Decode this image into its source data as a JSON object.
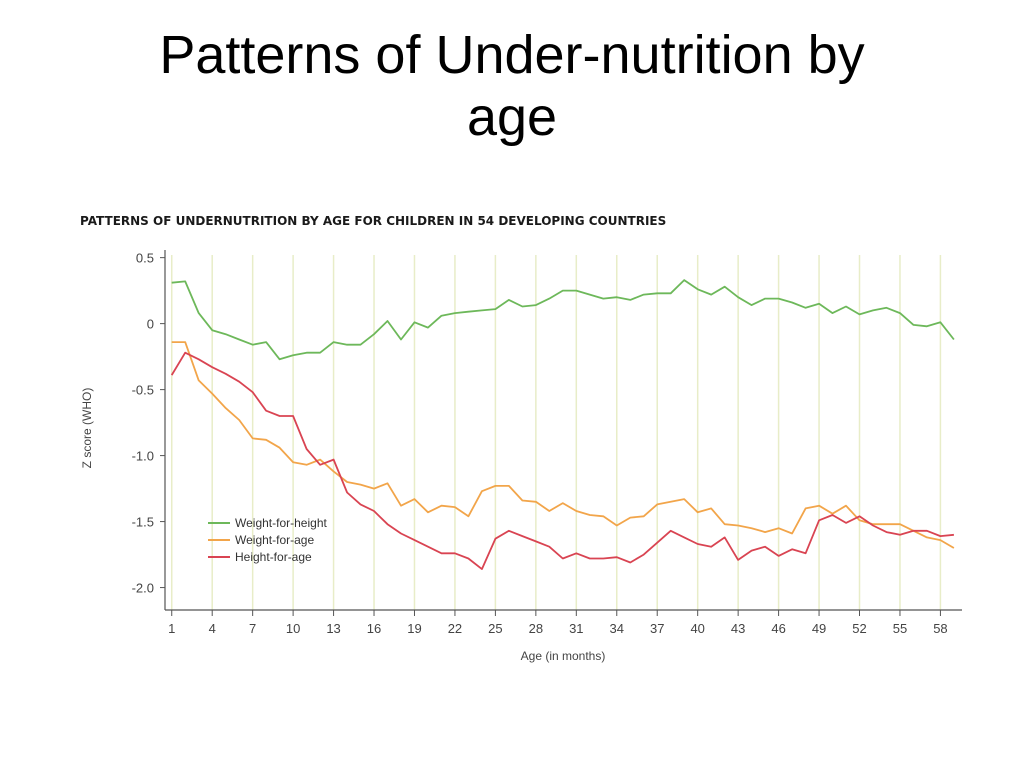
{
  "slide": {
    "title_line1": "Patterns of Under-nutrition by",
    "title_line2": "age"
  },
  "chart_data": {
    "type": "line",
    "title": "PATTERNS OF UNDERNUTRITION BY AGE FOR CHILDREN IN 54 DEVELOPING COUNTRIES",
    "xlabel": "Age (in months)",
    "ylabel": "Z score (WHO)",
    "x_ticks": [
      1,
      4,
      7,
      10,
      13,
      16,
      19,
      22,
      25,
      28,
      31,
      34,
      37,
      40,
      43,
      46,
      49,
      52,
      55,
      58
    ],
    "x_tick_labels": [
      "1",
      "4",
      "7",
      "10",
      "13",
      "16",
      "19",
      "22",
      "25",
      "28",
      "31",
      "34",
      "37",
      "40",
      "43",
      "46",
      "49",
      "52",
      "55",
      "58"
    ],
    "y_ticks": [
      0.5,
      0,
      -0.5,
      -1.0,
      -1.5,
      -2.0
    ],
    "y_tick_labels": [
      "0.5",
      "0",
      "-0.5",
      "-1.0",
      "-1.5",
      "-2.0"
    ],
    "xlim": [
      0.5,
      59.6
    ],
    "ylim": [
      -2.17,
      0.52
    ],
    "grid": "vertical",
    "grid_color": "#e8edc8",
    "legend_position": "lower-left",
    "x": [
      1,
      2,
      3,
      4,
      5,
      6,
      7,
      8,
      9,
      10,
      11,
      12,
      13,
      14,
      15,
      16,
      17,
      18,
      19,
      20,
      21,
      22,
      23,
      24,
      25,
      26,
      27,
      28,
      29,
      30,
      31,
      32,
      33,
      34,
      35,
      36,
      37,
      38,
      39,
      40,
      41,
      42,
      43,
      44,
      45,
      46,
      47,
      48,
      49,
      50,
      51,
      52,
      53,
      54,
      55,
      56,
      57,
      58,
      59
    ],
    "series": [
      {
        "name": "Weight-for-height",
        "color": "#6db85a",
        "values": [
          0.31,
          0.32,
          0.08,
          -0.05,
          -0.08,
          -0.12,
          -0.16,
          -0.14,
          -0.27,
          -0.24,
          -0.22,
          -0.22,
          -0.14,
          -0.16,
          -0.16,
          -0.08,
          0.02,
          -0.12,
          0.01,
          -0.03,
          0.06,
          0.08,
          0.09,
          0.1,
          0.11,
          0.18,
          0.13,
          0.14,
          0.19,
          0.25,
          0.25,
          0.22,
          0.19,
          0.2,
          0.18,
          0.22,
          0.23,
          0.23,
          0.33,
          0.26,
          0.22,
          0.28,
          0.2,
          0.14,
          0.19,
          0.19,
          0.16,
          0.12,
          0.15,
          0.08,
          0.13,
          0.07,
          0.1,
          0.12,
          0.08,
          -0.01,
          -0.02,
          0.01,
          -0.12
        ]
      },
      {
        "name": "Weight-for-age",
        "color": "#f2a54a",
        "values": [
          -0.14,
          -0.14,
          -0.43,
          -0.53,
          -0.64,
          -0.73,
          -0.87,
          -0.88,
          -0.94,
          -1.05,
          -1.07,
          -1.03,
          -1.12,
          -1.2,
          -1.22,
          -1.25,
          -1.21,
          -1.38,
          -1.33,
          -1.43,
          -1.38,
          -1.39,
          -1.46,
          -1.27,
          -1.23,
          -1.23,
          -1.34,
          -1.35,
          -1.42,
          -1.36,
          -1.42,
          -1.45,
          -1.46,
          -1.53,
          -1.47,
          -1.46,
          -1.37,
          -1.35,
          -1.33,
          -1.43,
          -1.4,
          -1.52,
          -1.53,
          -1.55,
          -1.58,
          -1.55,
          -1.59,
          -1.4,
          -1.38,
          -1.44,
          -1.38,
          -1.49,
          -1.52,
          -1.52,
          -1.52,
          -1.57,
          -1.62,
          -1.64,
          -1.7
        ]
      },
      {
        "name": "Height-for-age",
        "color": "#d94452",
        "values": [
          -0.39,
          -0.22,
          -0.27,
          -0.33,
          -0.38,
          -0.44,
          -0.52,
          -0.66,
          -0.7,
          -0.7,
          -0.95,
          -1.07,
          -1.03,
          -1.28,
          -1.37,
          -1.42,
          -1.52,
          -1.59,
          -1.64,
          -1.69,
          -1.74,
          -1.74,
          -1.78,
          -1.86,
          -1.63,
          -1.57,
          -1.61,
          -1.65,
          -1.69,
          -1.78,
          -1.74,
          -1.78,
          -1.78,
          -1.77,
          -1.81,
          -1.75,
          -1.66,
          -1.57,
          -1.62,
          -1.67,
          -1.69,
          -1.62,
          -1.79,
          -1.72,
          -1.69,
          -1.76,
          -1.71,
          -1.74,
          -1.49,
          -1.45,
          -1.51,
          -1.46,
          -1.53,
          -1.58,
          -1.6,
          -1.57,
          -1.57,
          -1.61,
          -1.6
        ]
      }
    ]
  }
}
